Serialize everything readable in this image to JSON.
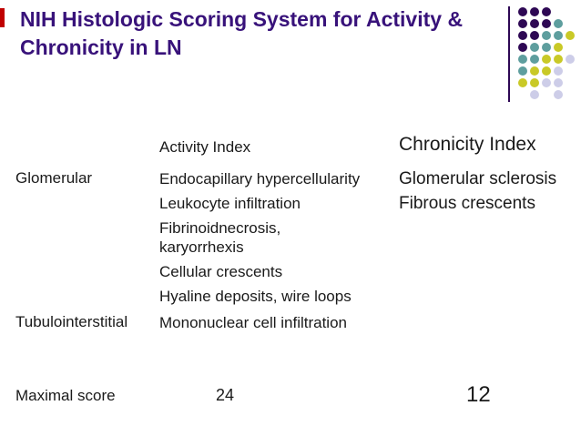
{
  "slide": {
    "title": {
      "line1": "NIH Histologic Scoring System for Activity &",
      "line2": "Chronicity in LN",
      "color": "#38127A"
    },
    "columns": {
      "activity_header": "Activity Index",
      "chronicity_header": "Chronicity Index"
    },
    "rows": {
      "glomerular": {
        "label": "Glomerular",
        "activity": [
          "Endocapillary hypercellularity",
          "Leukocyte infiltration",
          "Fibrinoidnecrosis,",
          "karyorrhexis",
          "Cellular crescents",
          "Hyaline deposits, wire loops"
        ],
        "chronicity": [
          "Glomerular sclerosis",
          "Fibrous crescents"
        ]
      },
      "tubulointerstitial": {
        "label": "Tubulointerstitial",
        "activity": [
          "Mononuclear cell infiltration"
        ]
      },
      "maximal": {
        "label": "Maximal score",
        "activity_value": "24",
        "chronicity_value": "12"
      }
    },
    "decor": {
      "red_bar_color": "#C00000",
      "divider_color": "#2E0854",
      "dot_palette": {
        "P": "#2E0854",
        "T": "#5E9E9E",
        "Y": "#C9C927",
        "L": "#CDCDE8"
      },
      "dot_rows": [
        "PPP..",
        "PPPT.",
        "PPTTY",
        "PTTY.",
        "TTYYL",
        "TYYL.",
        "YYLL.",
        ".L.L."
      ]
    }
  }
}
